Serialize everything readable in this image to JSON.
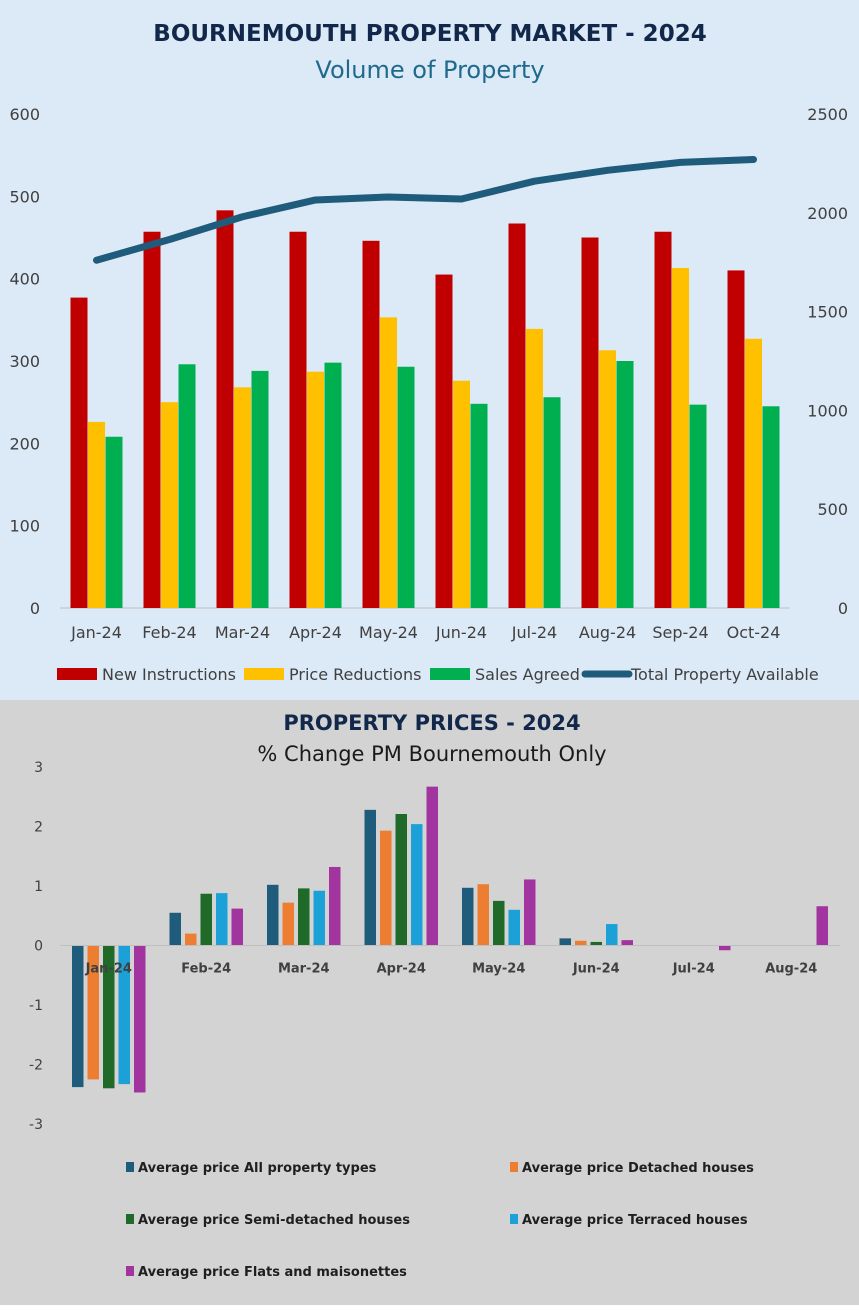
{
  "chart_data": [
    {
      "type": "bar",
      "title": "BOURNEMOUTH PROPERTY MARKET - 2024",
      "subtitle": "Volume of Property",
      "categories": [
        "Jan-24",
        "Feb-24",
        "Mar-24",
        "Apr-24",
        "May-24",
        "Jun-24",
        "Jul-24",
        "Aug-24",
        "Sep-24",
        "Oct-24"
      ],
      "ylim": [
        0,
        600
      ],
      "yticks": [
        "0",
        "100",
        "200",
        "300",
        "400",
        "500",
        "600"
      ],
      "y2lim": [
        0,
        2500
      ],
      "y2ticks": [
        "0",
        "500",
        "1000",
        "1500",
        "2000",
        "2500"
      ],
      "series": [
        {
          "name": "New Instructions",
          "type": "bar",
          "axis": "left",
          "color": "#c00000",
          "values": [
            377,
            457,
            483,
            457,
            446,
            405,
            467,
            450,
            457,
            410
          ]
        },
        {
          "name": "Price Reductions",
          "type": "bar",
          "axis": "left",
          "color": "#ffc000",
          "values": [
            226,
            250,
            268,
            287,
            353,
            276,
            339,
            313,
            413,
            327
          ]
        },
        {
          "name": "Sales Agreed",
          "type": "bar",
          "axis": "left",
          "color": "#00b050",
          "values": [
            208,
            296,
            288,
            298,
            293,
            248,
            256,
            300,
            247,
            245
          ]
        },
        {
          "name": "Total Property Available",
          "type": "line",
          "axis": "right",
          "color": "#1f5b7a",
          "values": [
            1760,
            1865,
            1980,
            2065,
            2080,
            2070,
            2160,
            2215,
            2255,
            2270
          ]
        }
      ],
      "legend": "bottom"
    },
    {
      "type": "bar",
      "title": "PROPERTY PRICES - 2024",
      "subtitle": "% Change PM  Bournemouth Only",
      "categories": [
        "Jan-24",
        "Feb-24",
        "Mar-24",
        "Apr-24",
        "May-24",
        "Jun-24",
        "Jul-24",
        "Aug-24"
      ],
      "ylim": [
        -3,
        3
      ],
      "yticks": [
        "-3",
        "-2",
        "-1",
        "0",
        "1",
        "2",
        "3"
      ],
      "series": [
        {
          "name": "Average price All property types",
          "color": "#1f5b7a",
          "values": [
            -2.38,
            0.55,
            1.02,
            2.28,
            0.97,
            0.12,
            0,
            0
          ]
        },
        {
          "name": "Average price Detached houses",
          "color": "#ed7d31",
          "values": [
            -2.25,
            0.2,
            0.72,
            1.93,
            1.03,
            0.08,
            0,
            0
          ]
        },
        {
          "name": "Average price Semi-detached houses",
          "color": "#1f6a28",
          "values": [
            -2.4,
            0.87,
            0.96,
            2.21,
            0.75,
            0.06,
            0,
            0
          ]
        },
        {
          "name": "Average price Terraced houses",
          "color": "#1ba1d8",
          "values": [
            -2.33,
            0.88,
            0.92,
            2.04,
            0.6,
            0.36,
            0,
            0
          ]
        },
        {
          "name": "Average price Flats and maisonettes",
          "color": "#a1349f",
          "values": [
            -2.47,
            0.62,
            1.32,
            2.67,
            1.11,
            0.09,
            -0.08,
            0.66
          ]
        }
      ],
      "legend": "bottom"
    }
  ]
}
